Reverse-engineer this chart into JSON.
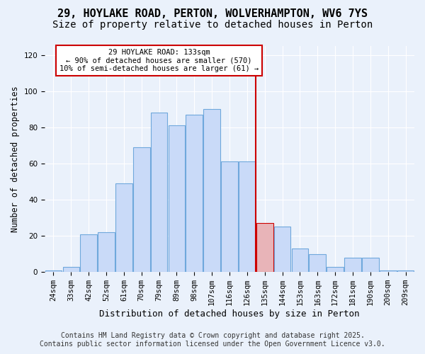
{
  "title": "29, HOYLAKE ROAD, PERTON, WOLVERHAMPTON, WV6 7YS",
  "subtitle": "Size of property relative to detached houses in Perton",
  "xlabel": "Distribution of detached houses by size in Perton",
  "ylabel": "Number of detached properties",
  "bar_labels": [
    "24sqm",
    "33sqm",
    "42sqm",
    "52sqm",
    "61sqm",
    "70sqm",
    "79sqm",
    "89sqm",
    "98sqm",
    "107sqm",
    "116sqm",
    "126sqm",
    "135sqm",
    "144sqm",
    "153sqm",
    "163sqm",
    "172sqm",
    "181sqm",
    "190sqm",
    "200sqm",
    "209sqm"
  ],
  "bar_values": [
    1,
    3,
    21,
    22,
    49,
    69,
    88,
    81,
    87,
    90,
    61,
    61,
    27,
    25,
    13,
    10,
    3,
    8,
    8,
    1,
    1
  ],
  "bar_color": "#c9daf8",
  "bar_edge_color": "#6fa8dc",
  "highlight_bar_index": 12,
  "highlight_bar_color": "#e8b4b8",
  "highlight_bar_edge_color": "#cc0000",
  "vline_color": "#cc0000",
  "annotation_title": "29 HOYLAKE ROAD: 133sqm",
  "annotation_line1": "← 90% of detached houses are smaller (570)",
  "annotation_line2": "10% of semi-detached houses are larger (61) →",
  "annotation_box_edge_color": "#cc0000",
  "ylim": [
    0,
    125
  ],
  "yticks": [
    0,
    20,
    40,
    60,
    80,
    100,
    120
  ],
  "background_color": "#eaf1fb",
  "footer_line1": "Contains HM Land Registry data © Crown copyright and database right 2025.",
  "footer_line2": "Contains public sector information licensed under the Open Government Licence v3.0.",
  "title_fontsize": 11,
  "subtitle_fontsize": 10,
  "xlabel_fontsize": 9,
  "ylabel_fontsize": 8.5,
  "tick_fontsize": 7.5,
  "footer_fontsize": 7,
  "annot_fontsize": 7.5
}
